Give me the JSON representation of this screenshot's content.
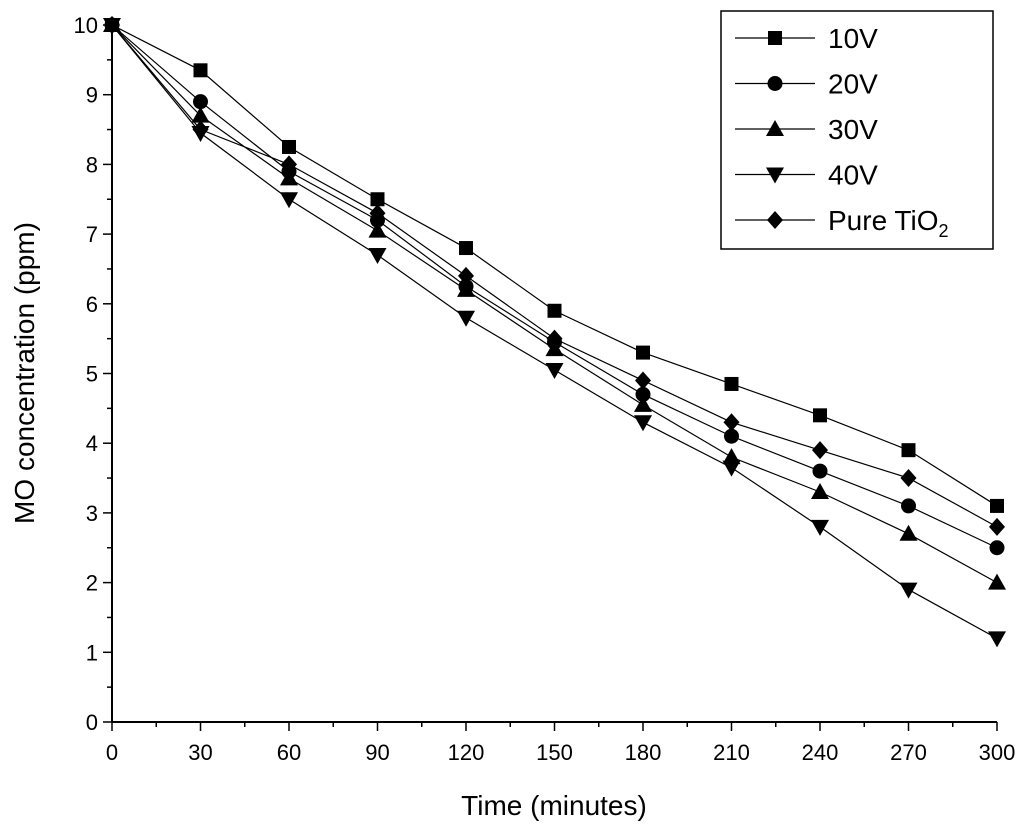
{
  "chart_data": {
    "type": "line",
    "title": "",
    "xlabel": "Time (minutes)",
    "ylabel": "MO concentration (ppm)",
    "xlim": [
      0,
      300
    ],
    "ylim": [
      0,
      10
    ],
    "x_ticks": [
      "0",
      "30",
      "60",
      "90",
      "120",
      "150",
      "180",
      "210",
      "240",
      "270",
      "300"
    ],
    "y_ticks": [
      "0",
      "1",
      "2",
      "3",
      "4",
      "5",
      "6",
      "7",
      "8",
      "9",
      "10"
    ],
    "x": [
      0,
      30,
      60,
      90,
      120,
      150,
      180,
      210,
      240,
      270,
      300
    ],
    "grid": false,
    "legend_position": "top-right",
    "series": [
      {
        "name": "10V",
        "marker": "square",
        "values": [
          10,
          9.35,
          8.25,
          7.5,
          6.8,
          5.9,
          5.3,
          4.85,
          4.4,
          3.9,
          3.1
        ]
      },
      {
        "name": "20V",
        "marker": "circle",
        "values": [
          10,
          8.9,
          7.9,
          7.2,
          6.25,
          5.45,
          4.7,
          4.1,
          3.6,
          3.1,
          2.5
        ]
      },
      {
        "name": "30V",
        "marker": "triangle-up",
        "values": [
          10,
          8.7,
          7.8,
          7.05,
          6.2,
          5.35,
          4.55,
          3.8,
          3.3,
          2.7,
          2.0
        ]
      },
      {
        "name": "40V",
        "marker": "triangle-down",
        "values": [
          10,
          8.45,
          7.5,
          6.7,
          5.8,
          5.05,
          4.3,
          3.65,
          2.8,
          1.9,
          1.2
        ]
      },
      {
        "name": "Pure TiO",
        "name_subscript": "2",
        "marker": "diamond",
        "values": [
          10,
          8.5,
          8.0,
          7.3,
          6.4,
          5.5,
          4.9,
          4.3,
          3.9,
          3.5,
          2.8
        ]
      }
    ]
  }
}
